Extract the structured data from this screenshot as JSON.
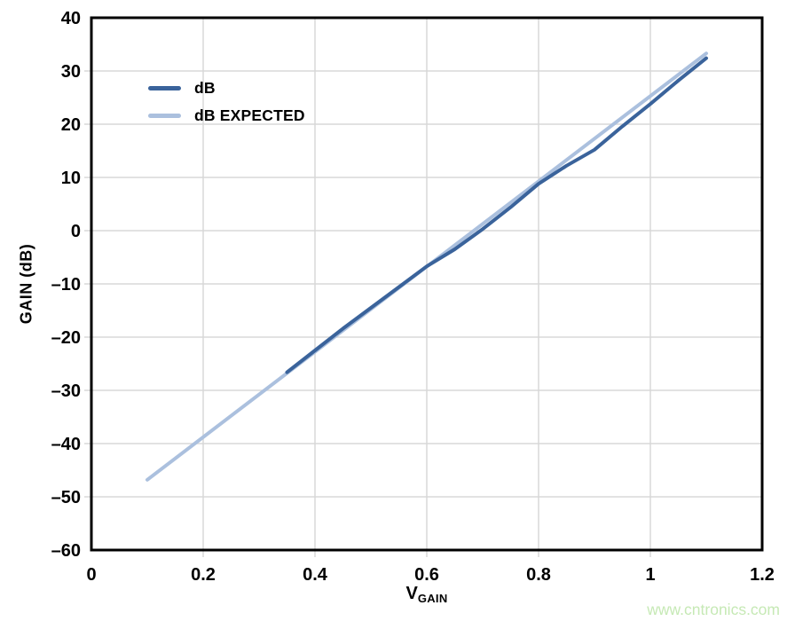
{
  "watermark": {
    "text": "www.cntronics.com",
    "color": "#c6e9b5"
  },
  "chart_data": {
    "type": "line",
    "title": "",
    "xlabel_main": "V",
    "xlabel_sub": "GAIN",
    "ylabel": "GAIN (dB)",
    "xlim": [
      0,
      1.2
    ],
    "ylim": [
      -60,
      40
    ],
    "grid": true,
    "grid_color": "#d8d8d8",
    "axis_color": "#000000",
    "legend_position": "top-left",
    "x_ticks": {
      "values": [
        0,
        0.2,
        0.4,
        0.6,
        0.8,
        1,
        1.2
      ],
      "labels": [
        "0",
        "0.2",
        "0.4",
        "0.6",
        "0.8",
        "1",
        "1.2"
      ]
    },
    "y_ticks": {
      "values": [
        40,
        30,
        20,
        10,
        0,
        -10,
        -20,
        -30,
        -40,
        -50,
        -60
      ],
      "labels": [
        "40",
        "30",
        "20",
        "10",
        "0",
        "–10",
        "–20",
        "–30",
        "–40",
        "–50",
        "–60"
      ]
    },
    "series": [
      {
        "name": "dB",
        "color": "#3a639b",
        "x": [
          0.35,
          0.4,
          0.45,
          0.5,
          0.55,
          0.6,
          0.65,
          0.7,
          0.75,
          0.8,
          0.85,
          0.9,
          0.95,
          1.0,
          1.05,
          1.1
        ],
        "y": [
          -26.6,
          -22.5,
          -18.4,
          -14.5,
          -10.6,
          -6.7,
          -3.5,
          0.3,
          4.4,
          8.8,
          12.2,
          15.2,
          19.6,
          23.8,
          28.2,
          32.4
        ]
      },
      {
        "name": "dB EXPECTED",
        "color": "#abc0de",
        "x": [
          0.1,
          1.1
        ],
        "y": [
          -46.8,
          33.3
        ]
      }
    ]
  }
}
